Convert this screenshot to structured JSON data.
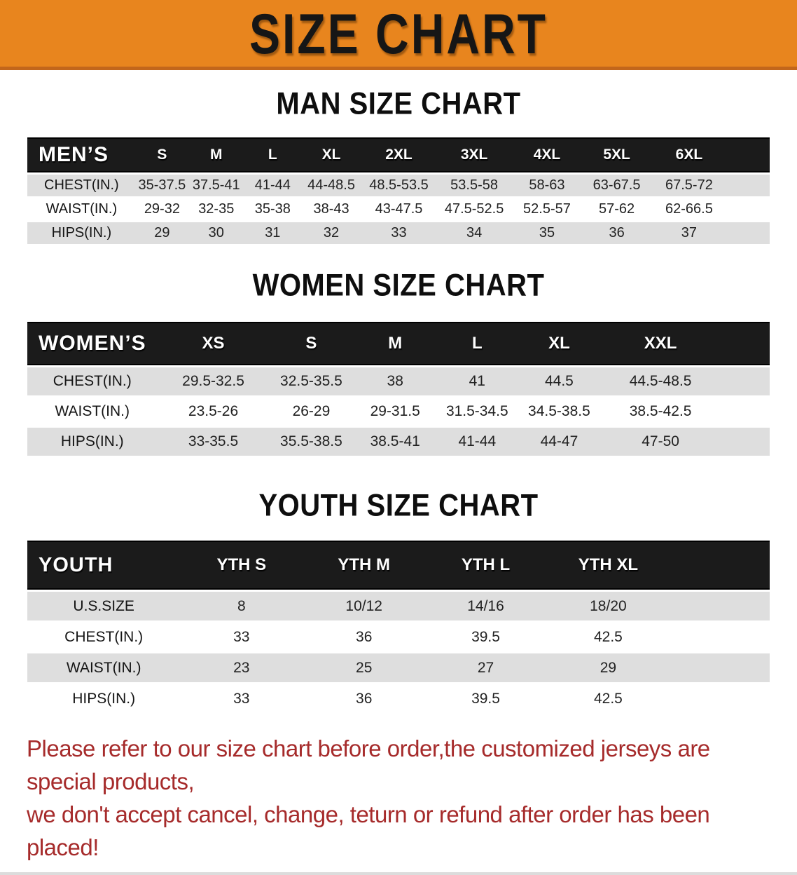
{
  "banner": {
    "title": "SIZE CHART",
    "background_color": "#E8851E",
    "border_color": "#C2661B",
    "text_color": "#161616"
  },
  "colors": {
    "table_header_bg": "#1B1B1B",
    "table_header_text": "#FFFFFF",
    "row_gray": "#DEDEDE",
    "row_white": "#FFFFFF",
    "footer_text": "#A62B2B"
  },
  "sections": [
    {
      "heading": "MAN SIZE CHART",
      "table": {
        "name": "mens-size-table",
        "header_label": "MEN’S",
        "columns": [
          "S",
          "M",
          "L",
          "XL",
          "2XL",
          "3XL",
          "4XL",
          "5XL",
          "6XL"
        ],
        "rows": [
          {
            "label": "CHEST(IN.)",
            "values": [
              "35-37.5",
              "37.5-41",
              "41-44",
              "44-48.5",
              "48.5-53.5",
              "53.5-58",
              "58-63",
              "63-67.5",
              "67.5-72"
            ]
          },
          {
            "label": "WAIST(IN.)",
            "values": [
              "29-32",
              "32-35",
              "35-38",
              "38-43",
              "43-47.5",
              "47.5-52.5",
              "52.5-57",
              "57-62",
              "62-66.5"
            ]
          },
          {
            "label": "HIPS(IN.)",
            "values": [
              "29",
              "30",
              "31",
              "32",
              "33",
              "34",
              "35",
              "36",
              "37"
            ]
          }
        ]
      }
    },
    {
      "heading": "WOMEN SIZE CHART",
      "table": {
        "name": "womens-size-table",
        "header_label": "WOMEN’S",
        "columns": [
          "XS",
          "S",
          "M",
          "L",
          "XL",
          "XXL"
        ],
        "rows": [
          {
            "label": "CHEST(IN.)",
            "values": [
              "29.5-32.5",
              "32.5-35.5",
              "38",
              "41",
              "44.5",
              "44.5-48.5"
            ]
          },
          {
            "label": "WAIST(IN.)",
            "values": [
              "23.5-26",
              "26-29",
              "29-31.5",
              "31.5-34.5",
              "34.5-38.5",
              "38.5-42.5"
            ]
          },
          {
            "label": "HIPS(IN.)",
            "values": [
              "33-35.5",
              "35.5-38.5",
              "38.5-41",
              "41-44",
              "44-47",
              "47-50"
            ]
          }
        ]
      }
    },
    {
      "heading": "YOUTH SIZE CHART",
      "table": {
        "name": "youth-size-table",
        "header_label": "YOUTH",
        "columns": [
          "YTH S",
          "YTH M",
          "YTH L",
          "YTH XL"
        ],
        "rows": [
          {
            "label": "U.S.SIZE",
            "values": [
              "8",
              "10/12",
              "14/16",
              "18/20"
            ]
          },
          {
            "label": "CHEST(IN.)",
            "values": [
              "33",
              "36",
              "39.5",
              "42.5"
            ]
          },
          {
            "label": "WAIST(IN.)",
            "values": [
              "23",
              "25",
              "27",
              "29"
            ]
          },
          {
            "label": "HIPS(IN.)",
            "values": [
              "33",
              "36",
              "39.5",
              "42.5"
            ]
          }
        ]
      }
    }
  ],
  "footer": {
    "line1": "Please refer to our size chart before order,the customized jerseys are special products,",
    "line2": "we don't accept cancel, change, teturn or refund after order has been placed!"
  }
}
